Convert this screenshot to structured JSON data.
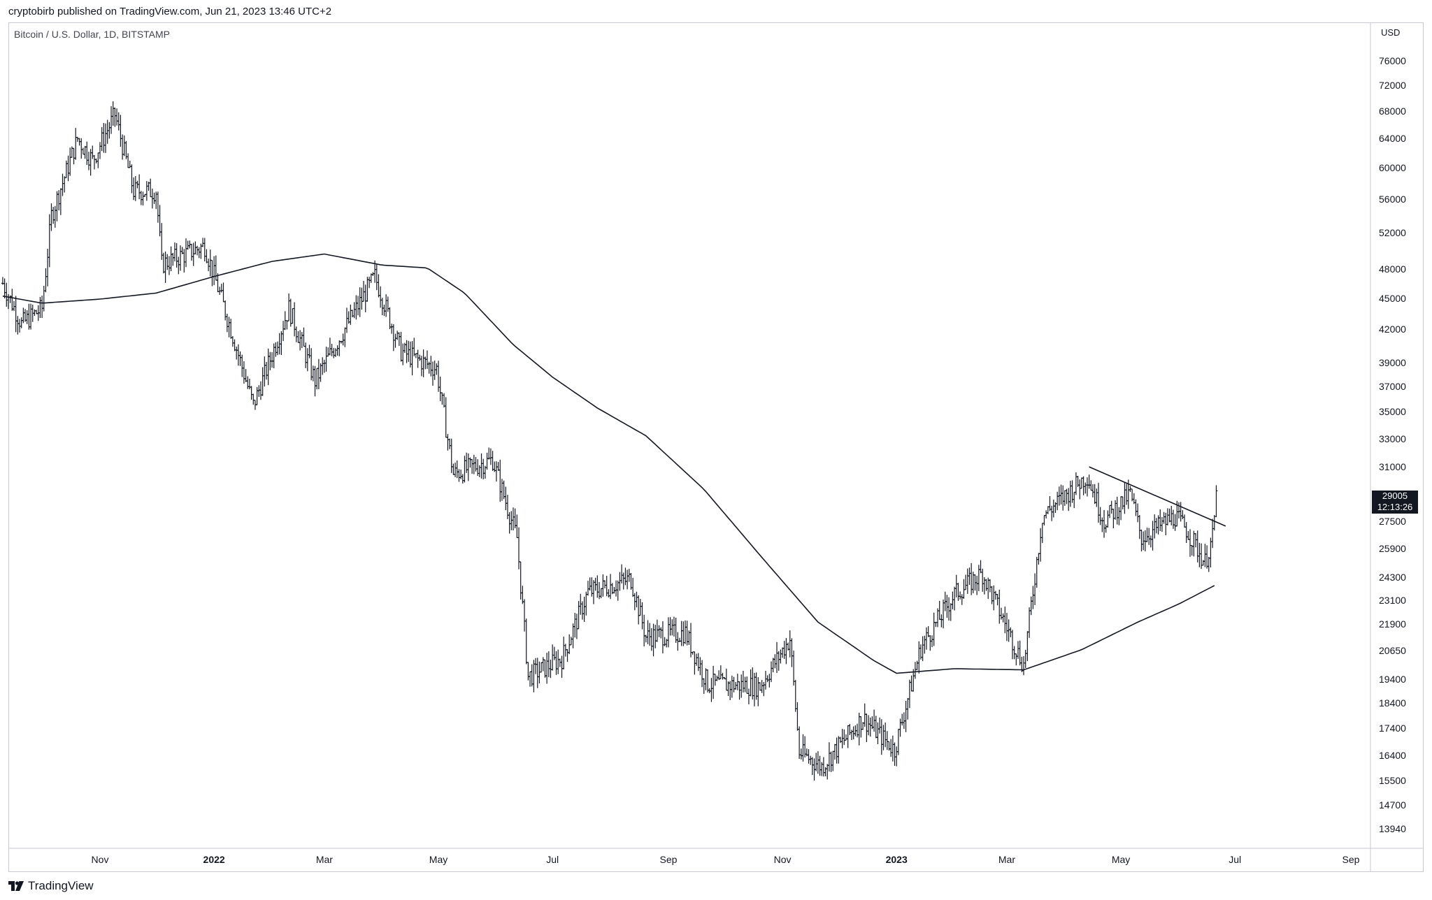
{
  "header": {
    "published_text": "cryptobirb published on TradingView.com, Jun 21, 2023 13:46 UTC+2",
    "symbol_text": "Bitcoin / U.S. Dollar, 1D, BITSTAMP",
    "currency": "USD"
  },
  "footer": {
    "brand": "TradingView",
    "logo_icon": "tradingview-logo-icon"
  },
  "colors": {
    "text": "#131722",
    "candle": "#131722",
    "line": "#131722",
    "border": "#c8cad1",
    "price_box": "#131722"
  },
  "last_price": {
    "value": "29005",
    "countdown": "12:13:26"
  },
  "chart_data": {
    "type": "ohlc",
    "scale": "log",
    "grid": false,
    "y_ticks": [
      "76000",
      "72000",
      "68000",
      "64000",
      "60000",
      "56000",
      "52000",
      "48000",
      "45000",
      "42000",
      "39000",
      "37000",
      "35000",
      "33000",
      "31000",
      "27500",
      "25900",
      "24300",
      "23100",
      "21900",
      "20650",
      "19400",
      "18400",
      "17400",
      "16400",
      "15500",
      "14700",
      "13940"
    ],
    "x_ticks": [
      {
        "label": "Nov",
        "date": "2021-11-01",
        "bold": false
      },
      {
        "label": "2022",
        "date": "2022-01-01",
        "bold": true
      },
      {
        "label": "Mar",
        "date": "2022-03-01",
        "bold": false
      },
      {
        "label": "May",
        "date": "2022-05-01",
        "bold": false
      },
      {
        "label": "Jul",
        "date": "2022-07-01",
        "bold": false
      },
      {
        "label": "Sep",
        "date": "2022-09-01",
        "bold": false
      },
      {
        "label": "Nov",
        "date": "2022-11-01",
        "bold": false
      },
      {
        "label": "2023",
        "date": "2023-01-01",
        "bold": true
      },
      {
        "label": "Mar",
        "date": "2023-03-01",
        "bold": false
      },
      {
        "label": "May",
        "date": "2023-05-01",
        "bold": false
      },
      {
        "label": "Jul",
        "date": "2023-07-01",
        "bold": false
      },
      {
        "label": "Sep",
        "date": "2023-09-01",
        "bold": false
      }
    ],
    "x_range": [
      "2021-09-10",
      "2023-09-30"
    ],
    "y_range": [
      13300,
      80000
    ],
    "price_path": [
      {
        "date": "2021-09-10",
        "price": 46500
      },
      {
        "date": "2021-09-20",
        "price": 42500
      },
      {
        "date": "2021-10-01",
        "price": 44000
      },
      {
        "date": "2021-10-06",
        "price": 54000
      },
      {
        "date": "2021-10-20",
        "price": 64000
      },
      {
        "date": "2021-10-28",
        "price": 61000
      },
      {
        "date": "2021-11-09",
        "price": 67500
      },
      {
        "date": "2021-11-19",
        "price": 57000
      },
      {
        "date": "2021-12-01",
        "price": 57000
      },
      {
        "date": "2021-12-04",
        "price": 48500
      },
      {
        "date": "2021-12-27",
        "price": 50500
      },
      {
        "date": "2022-01-10",
        "price": 42000
      },
      {
        "date": "2022-01-22",
        "price": 35500
      },
      {
        "date": "2022-02-10",
        "price": 44000
      },
      {
        "date": "2022-02-24",
        "price": 37500
      },
      {
        "date": "2022-03-28",
        "price": 47200
      },
      {
        "date": "2022-04-11",
        "price": 40000
      },
      {
        "date": "2022-04-30",
        "price": 38500
      },
      {
        "date": "2022-05-09",
        "price": 30500
      },
      {
        "date": "2022-05-30",
        "price": 31500
      },
      {
        "date": "2022-06-12",
        "price": 26500
      },
      {
        "date": "2022-06-18",
        "price": 19500
      },
      {
        "date": "2022-07-06",
        "price": 20300
      },
      {
        "date": "2022-07-20",
        "price": 23500
      },
      {
        "date": "2022-08-12",
        "price": 24200
      },
      {
        "date": "2022-08-20",
        "price": 21300
      },
      {
        "date": "2022-09-10",
        "price": 21500
      },
      {
        "date": "2022-09-22",
        "price": 19200
      },
      {
        "date": "2022-10-20",
        "price": 19100
      },
      {
        "date": "2022-11-05",
        "price": 21200
      },
      {
        "date": "2022-11-10",
        "price": 16500
      },
      {
        "date": "2022-11-22",
        "price": 16000
      },
      {
        "date": "2022-12-14",
        "price": 17800
      },
      {
        "date": "2022-12-31",
        "price": 16600
      },
      {
        "date": "2023-01-14",
        "price": 20800
      },
      {
        "date": "2023-02-01",
        "price": 23400
      },
      {
        "date": "2023-02-16",
        "price": 24500
      },
      {
        "date": "2023-03-10",
        "price": 20000
      },
      {
        "date": "2023-03-20",
        "price": 27800
      },
      {
        "date": "2023-04-13",
        "price": 30400
      },
      {
        "date": "2023-04-22",
        "price": 27500
      },
      {
        "date": "2023-05-06",
        "price": 29200
      },
      {
        "date": "2023-05-12",
        "price": 26500
      },
      {
        "date": "2023-05-30",
        "price": 27800
      },
      {
        "date": "2023-06-05",
        "price": 27000
      },
      {
        "date": "2023-06-15",
        "price": 25100
      },
      {
        "date": "2023-06-19",
        "price": 26500
      },
      {
        "date": "2023-06-21",
        "price": 29005
      }
    ],
    "moving_average": {
      "points": [
        {
          "date": "2021-09-10",
          "price": 45200
        },
        {
          "date": "2021-10-01",
          "price": 44500
        },
        {
          "date": "2021-11-01",
          "price": 44900
        },
        {
          "date": "2021-12-01",
          "price": 45500
        },
        {
          "date": "2022-01-01",
          "price": 47200
        },
        {
          "date": "2022-02-01",
          "price": 48800
        },
        {
          "date": "2022-03-01",
          "price": 49600
        },
        {
          "date": "2022-04-01",
          "price": 48400
        },
        {
          "date": "2022-04-25",
          "price": 48100
        },
        {
          "date": "2022-05-15",
          "price": 45500
        },
        {
          "date": "2022-06-10",
          "price": 40600
        },
        {
          "date": "2022-07-01",
          "price": 37800
        },
        {
          "date": "2022-07-25",
          "price": 35300
        },
        {
          "date": "2022-08-20",
          "price": 33200
        },
        {
          "date": "2022-09-20",
          "price": 29500
        },
        {
          "date": "2022-10-20",
          "price": 25500
        },
        {
          "date": "2022-11-20",
          "price": 22000
        },
        {
          "date": "2022-12-20",
          "price": 20200
        },
        {
          "date": "2023-01-01",
          "price": 19650
        },
        {
          "date": "2023-02-01",
          "price": 19850
        },
        {
          "date": "2023-03-10",
          "price": 19800
        },
        {
          "date": "2023-04-10",
          "price": 20700
        },
        {
          "date": "2023-05-10",
          "price": 22000
        },
        {
          "date": "2023-06-01",
          "price": 22900
        },
        {
          "date": "2023-06-21",
          "price": 23900
        }
      ]
    },
    "trendline": {
      "start": {
        "date": "2023-04-14",
        "price": 31000
      },
      "end": {
        "date": "2023-06-26",
        "price": 27200
      }
    }
  }
}
